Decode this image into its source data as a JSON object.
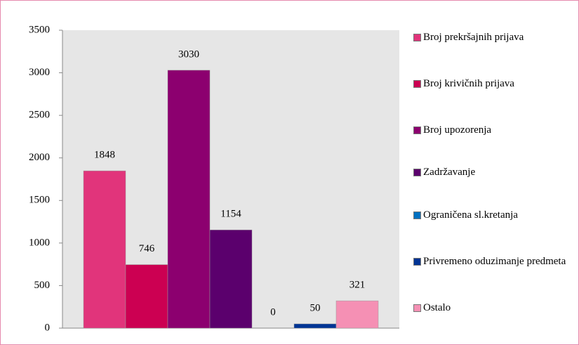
{
  "chart_data": {
    "type": "bar",
    "categories": [
      null
    ],
    "series": [
      {
        "name": "Broj prekršajnih prijava",
        "color": "#e1347b",
        "values": [
          1848
        ]
      },
      {
        "name": "Broj krivičnih prijava",
        "color": "#cc0052",
        "values": [
          746
        ]
      },
      {
        "name": "Broj upozorenja",
        "color": "#8c006f",
        "values": [
          3030
        ]
      },
      {
        "name": "Zadržavanje",
        "color": "#5b006d",
        "values": [
          1154
        ]
      },
      {
        "name": "Ograničena sl.kretanja",
        "color": "#0070c0",
        "values": [
          0
        ]
      },
      {
        "name": "Privremeno oduzimanje predmeta",
        "color": "#003494",
        "values": [
          50
        ]
      },
      {
        "name": "Ostalo",
        "color": "#f590b4",
        "values": [
          321
        ]
      }
    ],
    "ylim": [
      0,
      3500
    ],
    "yticks": [
      0,
      500,
      1000,
      1500,
      2000,
      2500,
      3000,
      3500
    ],
    "grid": false,
    "legend": "right"
  }
}
